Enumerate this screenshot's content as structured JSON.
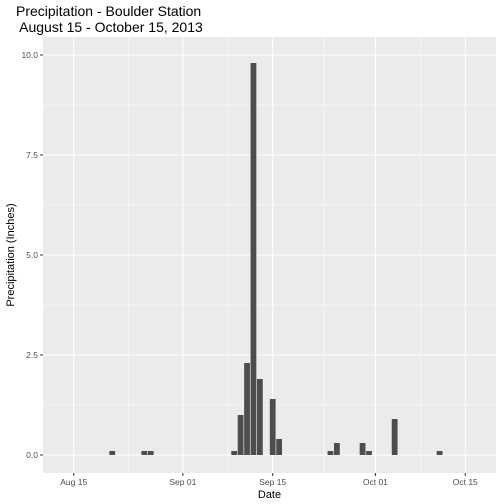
{
  "chart_data": {
    "type": "bar",
    "title": "Precipitation - Boulder Station",
    "subtitle": " August 15 - October 15, 2013",
    "xlabel": "Date",
    "ylabel": "Precipitation (Inches)",
    "x_ticks": [
      {
        "date": "2013-08-15",
        "label": "Aug 15"
      },
      {
        "date": "2013-09-01",
        "label": "Sep 01"
      },
      {
        "date": "2013-09-15",
        "label": "Sep 15"
      },
      {
        "date": "2013-10-01",
        "label": "Oct 01"
      },
      {
        "date": "2013-10-15",
        "label": "Oct 15"
      }
    ],
    "y_ticks": [
      0,
      2.5,
      5,
      7.5,
      10
    ],
    "y_tick_labels": [
      "0.0",
      "2.5",
      "5.0",
      "7.5",
      "10.0"
    ],
    "xlim": [
      "2013-08-15",
      "2013-10-15"
    ],
    "ylim": [
      0,
      10
    ],
    "grid": true,
    "colors": {
      "bar": "#4d4d4d",
      "panel": "#ebebeb",
      "grid": "#ffffff"
    },
    "points": [
      {
        "date": "2013-08-21",
        "value": 0.1
      },
      {
        "date": "2013-08-26",
        "value": 0.1
      },
      {
        "date": "2013-08-27",
        "value": 0.1
      },
      {
        "date": "2013-09-09",
        "value": 0.1
      },
      {
        "date": "2013-09-10",
        "value": 1.0
      },
      {
        "date": "2013-09-11",
        "value": 2.3
      },
      {
        "date": "2013-09-12",
        "value": 9.8
      },
      {
        "date": "2013-09-13",
        "value": 1.9
      },
      {
        "date": "2013-09-14",
        "value": 0.0
      },
      {
        "date": "2013-09-15",
        "value": 1.4
      },
      {
        "date": "2013-09-16",
        "value": 0.4
      },
      {
        "date": "2013-09-21",
        "value": 0.0
      },
      {
        "date": "2013-09-22",
        "value": 0.0
      },
      {
        "date": "2013-09-23",
        "value": 0.0
      },
      {
        "date": "2013-09-24",
        "value": 0.1
      },
      {
        "date": "2013-09-25",
        "value": 0.3
      },
      {
        "date": "2013-09-29",
        "value": 0.3
      },
      {
        "date": "2013-09-30",
        "value": 0.1
      },
      {
        "date": "2013-10-04",
        "value": 0.9
      },
      {
        "date": "2013-10-11",
        "value": 0.1
      }
    ]
  }
}
